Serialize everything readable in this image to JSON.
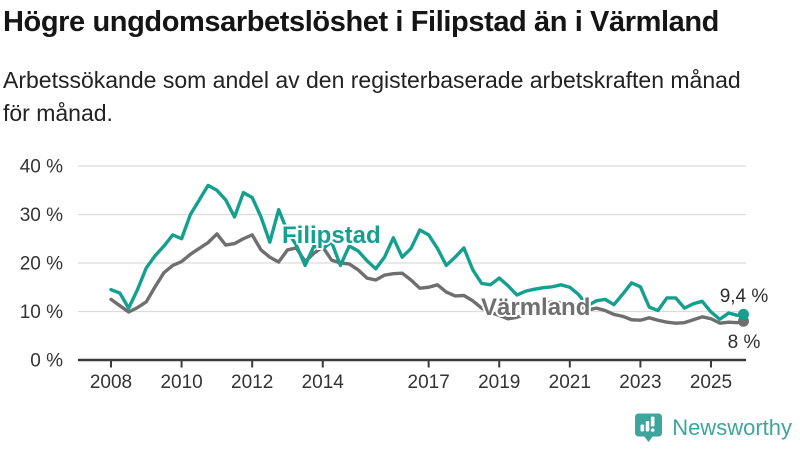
{
  "header": {
    "title": "Högre ungdomsarbetslöshet i Filipstad än i Värmland",
    "subtitle_line1": "Arbetssökande som andel av den registerbaserade arbetskraften månad",
    "subtitle_line2": "för månad."
  },
  "chart_data": {
    "type": "line",
    "title": "Högre ungdomsarbetslöshet i Filipstad än i Värmland",
    "subtitle": "Arbetssökande som andel av den registerbaserade arbetskraften månad för månad.",
    "grid": "horizontal",
    "ylim": [
      0,
      42
    ],
    "xlim": [
      2007.25,
      2026.0
    ],
    "yticks": [
      {
        "value": 0,
        "label": "0 %"
      },
      {
        "value": 10,
        "label": "10 %"
      },
      {
        "value": 20,
        "label": "20 %"
      },
      {
        "value": 30,
        "label": "30 %"
      },
      {
        "value": 40,
        "label": "40 %"
      }
    ],
    "xticks": [
      {
        "value": 2008,
        "label": "2008"
      },
      {
        "value": 2010,
        "label": "2010"
      },
      {
        "value": 2012,
        "label": "2012"
      },
      {
        "value": 2014,
        "label": "2014"
      },
      {
        "value": 2017,
        "label": "2017"
      },
      {
        "value": 2019,
        "label": "2019"
      },
      {
        "value": 2021,
        "label": "2021"
      },
      {
        "value": 2023,
        "label": "2023"
      },
      {
        "value": 2025,
        "label": "2025"
      }
    ],
    "x": [
      2008.0,
      2008.25,
      2008.5,
      2008.75,
      2009.0,
      2009.25,
      2009.5,
      2009.75,
      2010.0,
      2010.25,
      2010.5,
      2010.75,
      2011.0,
      2011.25,
      2011.5,
      2011.75,
      2012.0,
      2012.25,
      2012.5,
      2012.75,
      2013.0,
      2013.25,
      2013.5,
      2013.75,
      2014.0,
      2014.25,
      2014.5,
      2014.75,
      2015.0,
      2015.25,
      2015.5,
      2015.75,
      2016.0,
      2016.25,
      2016.5,
      2016.75,
      2017.0,
      2017.25,
      2017.5,
      2017.75,
      2018.0,
      2018.25,
      2018.5,
      2018.75,
      2019.0,
      2019.25,
      2019.5,
      2019.75,
      2020.0,
      2020.25,
      2020.5,
      2020.75,
      2021.0,
      2021.25,
      2021.5,
      2021.75,
      2022.0,
      2022.25,
      2022.5,
      2022.75,
      2023.0,
      2023.25,
      2023.5,
      2023.75,
      2024.0,
      2024.25,
      2024.5,
      2024.75,
      2025.0,
      2025.25,
      2025.5,
      2025.75,
      2025.92
    ],
    "series": [
      {
        "name": "Filipstad",
        "color": "#14a08f",
        "end_label": "9,4 %",
        "values": [
          14.5,
          13.8,
          10.7,
          14.5,
          19.0,
          21.5,
          23.5,
          25.8,
          25.0,
          30.0,
          33.0,
          36.0,
          35.0,
          33.0,
          29.5,
          34.5,
          33.5,
          29.5,
          24.3,
          31.0,
          26.5,
          23.7,
          19.5,
          23.5,
          23.0,
          24.3,
          19.5,
          23.5,
          22.5,
          20.5,
          18.8,
          21.2,
          25.2,
          21.2,
          23.0,
          26.8,
          25.8,
          23.0,
          19.5,
          21.2,
          23.1,
          18.6,
          15.8,
          15.5,
          16.9,
          15.3,
          13.4,
          14.2,
          14.6,
          14.9,
          15.1,
          15.5,
          15.0,
          13.5,
          11.2,
          12.2,
          12.5,
          11.4,
          13.6,
          15.9,
          15.1,
          10.9,
          10.2,
          12.8,
          12.8,
          10.7,
          11.6,
          12.1,
          9.9,
          8.4,
          9.7,
          9.2,
          9.4
        ]
      },
      {
        "name": "Värmland",
        "color": "#6f6f6f",
        "end_label": "8 %",
        "values": [
          12.5,
          11.2,
          9.9,
          10.8,
          12.0,
          15.1,
          18.0,
          19.5,
          20.3,
          21.8,
          23.0,
          24.2,
          26.0,
          23.7,
          24.0,
          25.0,
          25.8,
          22.7,
          21.2,
          20.2,
          22.7,
          23.1,
          20.3,
          22.0,
          23.3,
          20.6,
          20.0,
          19.8,
          18.6,
          16.9,
          16.5,
          17.5,
          17.8,
          17.9,
          16.5,
          14.8,
          15.0,
          15.5,
          14.0,
          13.2,
          13.3,
          12.2,
          10.7,
          9.8,
          9.2,
          8.5,
          8.8,
          9.5,
          10.0,
          11.5,
          12.0,
          11.8,
          11.5,
          11.3,
          10.3,
          10.7,
          10.2,
          9.4,
          9.0,
          8.3,
          8.2,
          8.7,
          8.2,
          7.8,
          7.6,
          7.7,
          8.3,
          8.9,
          8.5,
          7.6,
          7.8,
          7.7,
          8.0
        ]
      }
    ]
  },
  "footer": {
    "brand": "Newsworthy"
  },
  "colors": {
    "accent": "#14a08f",
    "secondary": "#6f6f6f",
    "brand": "#3da59d",
    "grid": "#dcdcdc",
    "axis": "#3b3b3b"
  }
}
